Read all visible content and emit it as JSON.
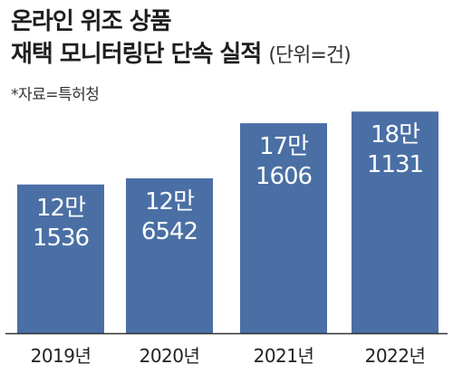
{
  "title_line1": "온라인 위조 상품",
  "title_line2": "재택 모니터링단 단속 실적",
  "unit": "(단위=건)",
  "source": "*자료=특허청",
  "colors": {
    "bar": "#4a6fa5",
    "axis": "#333333",
    "bar_text": "#ffffff"
  },
  "chart_data": {
    "type": "bar",
    "title": "온라인 위조 상품 재택 모니터링단 단속 실적",
    "unit": "(단위=건)",
    "categories": [
      "2019년",
      "2020년",
      "2021년",
      "2022년"
    ],
    "values": [
      121536,
      126542,
      171606,
      181131
    ],
    "data_labels": [
      [
        "12만",
        "1536"
      ],
      [
        "12만",
        "6542"
      ],
      [
        "17만",
        "1606"
      ],
      [
        "18만",
        "1131"
      ]
    ],
    "xlabel": "",
    "ylabel": "",
    "ylim": [
      0,
      185000
    ],
    "grid": false,
    "legend": "none"
  }
}
